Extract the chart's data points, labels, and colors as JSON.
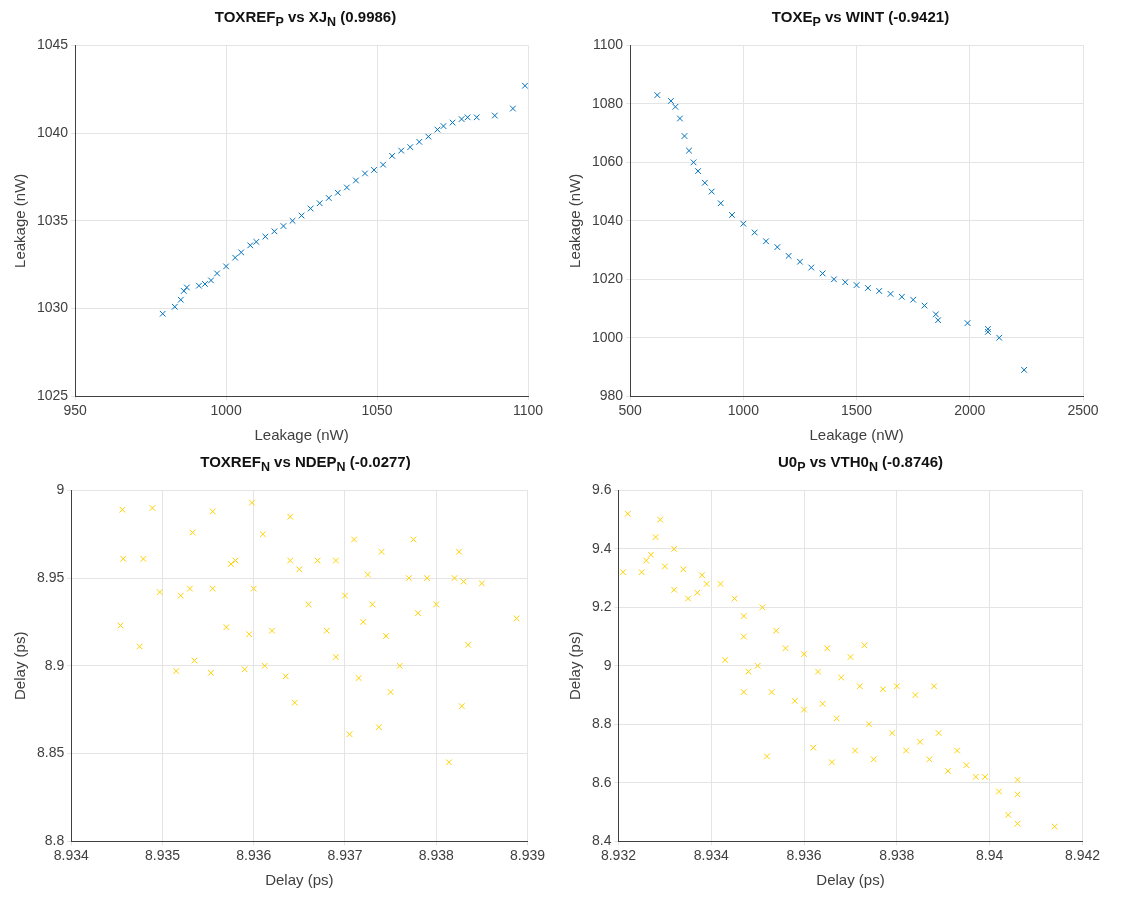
{
  "chart_data": [
    {
      "type": "scatter",
      "title": "TOXREF$_{P}$ vs XJ$_{N}$ (0.9986)",
      "xlabel": "Leakage (nW)",
      "ylabel": "Leakage (nW)",
      "color": "#0072bd",
      "marker": "cross",
      "grid": true,
      "x": [
        979,
        983,
        985,
        986,
        987,
        991,
        993,
        995,
        997,
        1000,
        1003,
        1005,
        1008,
        1010,
        1013,
        1016,
        1019,
        1022,
        1025,
        1028,
        1031,
        1034,
        1037,
        1040,
        1043,
        1046,
        1049,
        1052,
        1055,
        1058,
        1061,
        1064,
        1067,
        1070,
        1072,
        1075,
        1078,
        1080,
        1083,
        1089,
        1095,
        1099
      ],
      "values": [
        1029.7,
        1030.1,
        1030.5,
        1031.0,
        1031.2,
        1031.3,
        1031.4,
        1031.6,
        1032.0,
        1032.4,
        1032.9,
        1033.2,
        1033.6,
        1033.8,
        1034.1,
        1034.4,
        1034.7,
        1035.0,
        1035.3,
        1035.7,
        1036.0,
        1036.3,
        1036.6,
        1036.9,
        1037.3,
        1037.7,
        1037.9,
        1038.2,
        1038.7,
        1039.0,
        1039.2,
        1039.5,
        1039.8,
        1040.2,
        1040.4,
        1040.6,
        1040.8,
        1040.9,
        1040.9,
        1041.0,
        1041.4,
        1042.7
      ],
      "xlim": [
        950,
        1100
      ],
      "xticks": [
        950,
        1000,
        1050,
        1100
      ],
      "ylim": [
        1025,
        1045
      ],
      "yticks": [
        1025,
        1030,
        1035,
        1040,
        1045
      ]
    },
    {
      "type": "scatter",
      "title": "TOXE$_{P}$ vs WINT (-0.9421)",
      "xlabel": "Leakage (nW)",
      "ylabel": "Leakage (nW)",
      "color": "#0072bd",
      "marker": "cross",
      "grid": true,
      "x": [
        620,
        680,
        700,
        720,
        740,
        760,
        780,
        800,
        830,
        860,
        900,
        950,
        1000,
        1050,
        1100,
        1150,
        1200,
        1250,
        1300,
        1350,
        1400,
        1450,
        1500,
        1550,
        1600,
        1650,
        1700,
        1750,
        1800,
        1850,
        1860,
        1990,
        2080,
        2080,
        2130,
        2240
      ],
      "values": [
        1083,
        1081,
        1079,
        1075,
        1069,
        1064,
        1060,
        1057,
        1053,
        1050,
        1046,
        1042,
        1039,
        1036,
        1033,
        1031,
        1028,
        1026,
        1024,
        1022,
        1020,
        1019,
        1018,
        1017,
        1016,
        1015,
        1014,
        1013,
        1011,
        1008,
        1006,
        1005,
        1003,
        1002,
        1000,
        989
      ],
      "xlim": [
        500,
        2500
      ],
      "xticks": [
        500,
        1000,
        1500,
        2000,
        2500
      ],
      "ylim": [
        980,
        1100
      ],
      "yticks": [
        980,
        1000,
        1020,
        1040,
        1060,
        1080,
        1100
      ]
    },
    {
      "type": "scatter",
      "title": "TOXREF$_{N}$ vs NDEP$_{N}$ (-0.0277)",
      "xlabel": "Delay (ps)",
      "ylabel": "Delay (ps)",
      "color": "#ffd200",
      "marker": "cross",
      "grid": true,
      "x": [
        8.93456,
        8.93489,
        8.93457,
        8.93479,
        8.93454,
        8.93475,
        8.93497,
        8.93515,
        8.9352,
        8.9353,
        8.93533,
        8.93535,
        8.93553,
        8.93555,
        8.93555,
        8.9357,
        8.9358,
        8.9359,
        8.93598,
        8.936,
        8.9361,
        8.93612,
        8.9362,
        8.9364,
        8.93635,
        8.9364,
        8.93645,
        8.9366,
        8.9368,
        8.9369,
        8.937,
        8.93705,
        8.9371,
        8.93715,
        8.9372,
        8.9373,
        8.93737,
        8.9374,
        8.9375,
        8.9376,
        8.9377,
        8.93775,
        8.9378,
        8.9379,
        8.938,
        8.93814,
        8.9382,
        8.93825,
        8.93828,
        8.9383,
        8.93835,
        8.9385,
        8.93888,
        8.9365,
        8.9369,
        8.9367,
        8.93575,
        8.93595,
        8.93725,
        8.93745
      ],
      "values": [
        8.989,
        8.99,
        8.961,
        8.961,
        8.923,
        8.911,
        8.942,
        8.897,
        8.94,
        8.944,
        8.976,
        8.903,
        8.896,
        8.944,
        8.988,
        8.922,
        8.96,
        8.898,
        8.993,
        8.944,
        8.975,
        8.9,
        8.92,
        8.96,
        8.894,
        8.985,
        8.879,
        8.935,
        8.92,
        8.96,
        8.94,
        8.861,
        8.972,
        8.893,
        8.925,
        8.935,
        8.865,
        8.965,
        8.885,
        8.9,
        8.95,
        8.972,
        8.93,
        8.95,
        8.935,
        8.845,
        8.95,
        8.965,
        8.877,
        8.948,
        8.912,
        8.947,
        8.927,
        8.955,
        8.905,
        8.96,
        8.958,
        8.918,
        8.952,
        8.917
      ],
      "xlim": [
        8.934,
        8.939
      ],
      "xticks": [
        8.934,
        8.935,
        8.936,
        8.937,
        8.938,
        8.939
      ],
      "ylim": [
        8.8,
        9
      ],
      "yticks": [
        8.8,
        8.85,
        8.9,
        8.95,
        9
      ]
    },
    {
      "type": "scatter",
      "title": "U0$_{P}$ vs VTH0$_{N}$ (-0.8746)",
      "xlabel": "Delay (ps)",
      "ylabel": "Delay (ps)",
      "color": "#ffd200",
      "marker": "cross",
      "grid": true,
      "x": [
        8.9322,
        8.9321,
        8.9325,
        8.9326,
        8.9327,
        8.9328,
        8.9329,
        8.933,
        8.9332,
        8.9332,
        8.9334,
        8.9335,
        8.9337,
        8.9338,
        8.9339,
        8.9342,
        8.9343,
        8.9345,
        8.9347,
        8.9347,
        8.9347,
        8.9348,
        8.935,
        8.9351,
        8.9352,
        8.9353,
        8.9354,
        8.9356,
        8.9358,
        8.936,
        8.936,
        8.9362,
        8.9363,
        8.9364,
        8.9365,
        8.9366,
        8.9367,
        8.9368,
        8.937,
        8.9371,
        8.9372,
        8.9373,
        8.9374,
        8.9375,
        8.9377,
        8.9379,
        8.938,
        8.9382,
        8.9384,
        8.9385,
        8.9387,
        8.9388,
        8.9389,
        8.9391,
        8.9393,
        8.9395,
        8.9397,
        8.9399,
        8.9402,
        8.9404,
        8.9406,
        8.9406,
        8.9406,
        8.9414
      ],
      "values": [
        9.52,
        9.32,
        9.32,
        9.36,
        9.38,
        9.44,
        9.5,
        9.34,
        9.4,
        9.26,
        9.33,
        9.23,
        9.25,
        9.31,
        9.28,
        9.28,
        9.02,
        9.23,
        9.17,
        9.1,
        8.91,
        8.98,
        9,
        9.2,
        8.69,
        8.91,
        9.12,
        9.06,
        8.88,
        9.04,
        8.85,
        8.72,
        8.98,
        8.87,
        9.06,
        8.67,
        8.82,
        8.96,
        9.03,
        8.71,
        8.93,
        9.07,
        8.8,
        8.68,
        8.92,
        8.77,
        8.93,
        8.71,
        8.9,
        8.74,
        8.68,
        8.93,
        8.77,
        8.64,
        8.71,
        8.66,
        8.62,
        8.62,
        8.57,
        8.49,
        8.61,
        8.56,
        8.46,
        8.45
      ],
      "xlim": [
        8.932,
        8.942
      ],
      "xticks": [
        8.932,
        8.934,
        8.936,
        8.938,
        8.94,
        8.942
      ],
      "ylim": [
        8.4,
        9.6
      ],
      "yticks": [
        8.4,
        8.6,
        8.8,
        9,
        9.2,
        9.4,
        9.6
      ]
    }
  ]
}
